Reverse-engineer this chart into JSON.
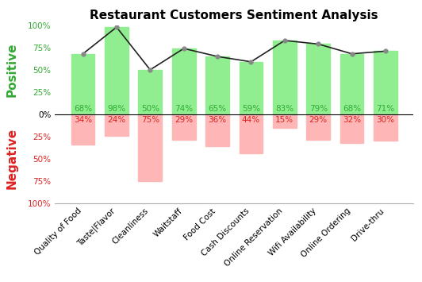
{
  "title": "Restaurant Customers Sentiment Analysis",
  "categories": [
    "Quality of Food",
    "Taste|Flavor",
    "Cleanliness",
    "Waitstaff",
    "Food Cost",
    "Cash Discounts",
    "Online Reservation",
    "Wifi Availability",
    "Online Ordering",
    "Drive-thru"
  ],
  "positive": [
    68,
    98,
    50,
    74,
    65,
    59,
    83,
    79,
    68,
    71
  ],
  "negative": [
    34,
    24,
    75,
    29,
    36,
    44,
    15,
    29,
    32,
    30
  ],
  "bar_color_pos": "#90EE90",
  "bar_color_neg": "#FFB6B6",
  "line_color": "#222222",
  "line_marker_color": "#888888",
  "pos_text_color": "#33AA33",
  "neg_text_color": "#DD2222",
  "pos_tick_color": "#33AA33",
  "neg_tick_color": "#DD2222",
  "ylabel_pos": "Positive",
  "ylabel_neg": "Negative",
  "ylim": [
    -100,
    100
  ],
  "yticks": [
    100,
    75,
    50,
    25,
    0,
    -25,
    -50,
    -75,
    -100
  ],
  "ytick_labels": [
    "100%",
    "75%",
    "50%",
    "25%",
    "0%",
    "25%",
    "50%",
    "75%",
    "100%"
  ],
  "background_color": "#ffffff",
  "title_fontsize": 11,
  "label_fontsize": 7.5,
  "tick_fontsize": 7.5,
  "ylabel_fontsize": 11
}
